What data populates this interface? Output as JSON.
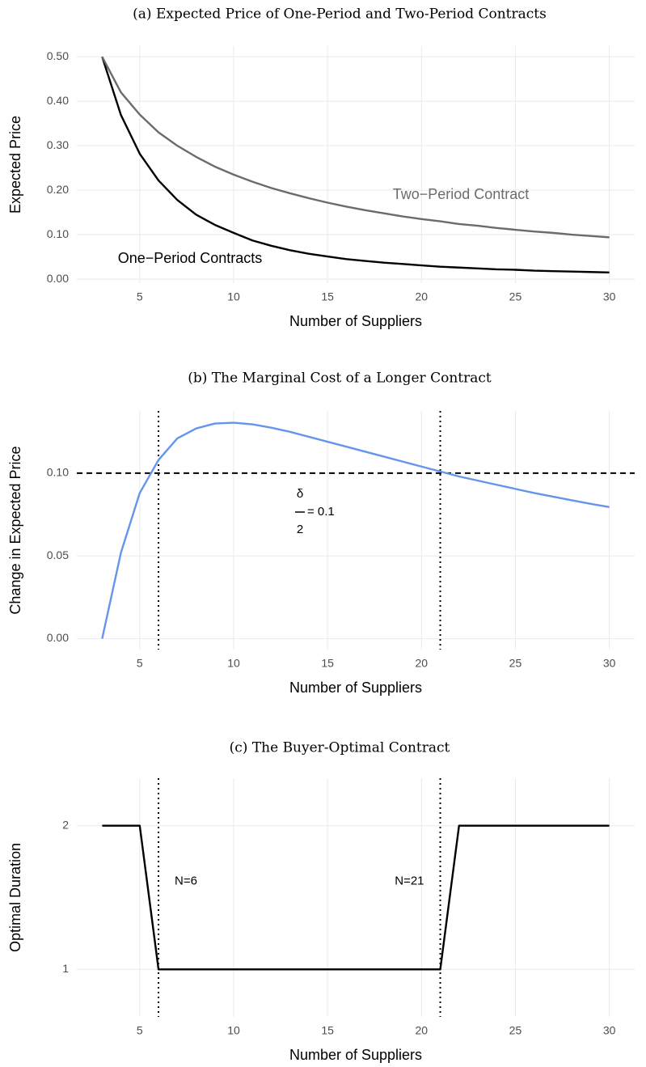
{
  "chart_data": [
    {
      "type": "line",
      "title": "(a) Expected Price of One-Period and Two-Period Contracts",
      "x_label": "Number of Suppliers",
      "y_label": "Expected Price",
      "x": [
        3,
        4,
        5,
        6,
        7,
        8,
        9,
        10,
        11,
        12,
        13,
        14,
        15,
        16,
        17,
        18,
        19,
        20,
        21,
        22,
        23,
        24,
        25,
        26,
        27,
        28,
        29,
        30
      ],
      "series": [
        {
          "name": "One−Period Contracts",
          "color": "#000000",
          "values": [
            0.5,
            0.369,
            0.282,
            0.222,
            0.178,
            0.145,
            0.122,
            0.104,
            0.087,
            0.075,
            0.065,
            0.057,
            0.051,
            0.045,
            0.041,
            0.037,
            0.034,
            0.031,
            0.028,
            0.026,
            0.024,
            0.022,
            0.021,
            0.019,
            0.018,
            0.017,
            0.016,
            0.015
          ]
        },
        {
          "name": "Two−Period Contract",
          "color": "#6b6b6b",
          "values": [
            0.5,
            0.42,
            0.37,
            0.33,
            0.3,
            0.275,
            0.253,
            0.235,
            0.219,
            0.205,
            0.193,
            0.182,
            0.172,
            0.163,
            0.155,
            0.148,
            0.141,
            0.135,
            0.13,
            0.124,
            0.12,
            0.115,
            0.111,
            0.107,
            0.104,
            0.1,
            0.097,
            0.094
          ]
        }
      ],
      "xlim": [
        1.65,
        31.35
      ],
      "xticks": [
        5,
        10,
        15,
        20,
        25,
        30
      ],
      "ylim": [
        -0.009,
        0.524
      ],
      "yticks": [
        {
          "value": 0,
          "label": "0.00"
        },
        {
          "value": 0.1,
          "label": "0.10"
        },
        {
          "value": 0.2,
          "label": "0.20"
        },
        {
          "value": 0.3,
          "label": "0.30"
        },
        {
          "value": 0.4,
          "label": "0.40"
        },
        {
          "value": 0.5,
          "label": "0.50"
        }
      ],
      "grid": true
    },
    {
      "type": "line",
      "title": "(b) The Marginal Cost of a Longer Contract",
      "x_label": "Number of Suppliers",
      "y_label": "Change in Expected Price",
      "x": [
        3,
        4,
        5,
        6,
        7,
        8,
        9,
        10,
        11,
        12,
        13,
        14,
        15,
        16,
        17,
        18,
        19,
        20,
        21,
        22,
        23,
        24,
        25,
        26,
        27,
        28,
        29,
        30
      ],
      "series": [
        {
          "color": "#6495ed",
          "values": [
            0,
            0.052,
            0.088,
            0.108,
            0.121,
            0.127,
            0.13,
            0.1305,
            0.1295,
            0.1275,
            0.125,
            0.122,
            0.119,
            0.116,
            0.113,
            0.11,
            0.107,
            0.104,
            0.101,
            0.098,
            0.0955,
            0.093,
            0.0905,
            0.088,
            0.0858,
            0.0836,
            0.0815,
            0.0795
          ]
        }
      ],
      "xlim": [
        1.65,
        31.35
      ],
      "xticks": [
        5,
        10,
        15,
        20,
        25,
        30
      ],
      "ylim": [
        -0.0066,
        0.1376
      ],
      "yticks": [
        {
          "value": 0,
          "label": "0.00"
        },
        {
          "value": 0.05,
          "label": "0.05"
        },
        {
          "value": 0.1,
          "label": "0.10"
        }
      ],
      "hlines": [
        0.1
      ],
      "vlines": [
        6,
        21
      ],
      "annotation": {
        "numerator": "δ",
        "denominator": "2",
        "text": "= 0.1"
      },
      "grid": true
    },
    {
      "type": "line",
      "title": "(c) The Buyer-Optimal Contract",
      "x_label": "Number of Suppliers",
      "y_label": "Optimal Duration",
      "x": [
        3,
        4,
        5,
        6,
        7,
        8,
        9,
        10,
        11,
        12,
        13,
        14,
        15,
        16,
        17,
        18,
        19,
        20,
        21,
        22,
        23,
        24,
        25,
        26,
        27,
        28,
        29,
        30
      ],
      "series": [
        {
          "color": "#000000",
          "values": [
            2,
            2,
            2,
            1,
            1,
            1,
            1,
            1,
            1,
            1,
            1,
            1,
            1,
            1,
            1,
            1,
            1,
            1,
            1,
            2,
            2,
            2,
            2,
            2,
            2,
            2,
            2,
            2
          ]
        }
      ],
      "xlim": [
        1.65,
        31.35
      ],
      "xticks": [
        5,
        10,
        15,
        20,
        25,
        30
      ],
      "ylim": [
        0.67,
        2.33
      ],
      "yticks": [
        1,
        2
      ],
      "vlines": [
        6,
        21
      ],
      "vline_labels": [
        "N=6",
        "N=21"
      ],
      "grid": true
    }
  ]
}
